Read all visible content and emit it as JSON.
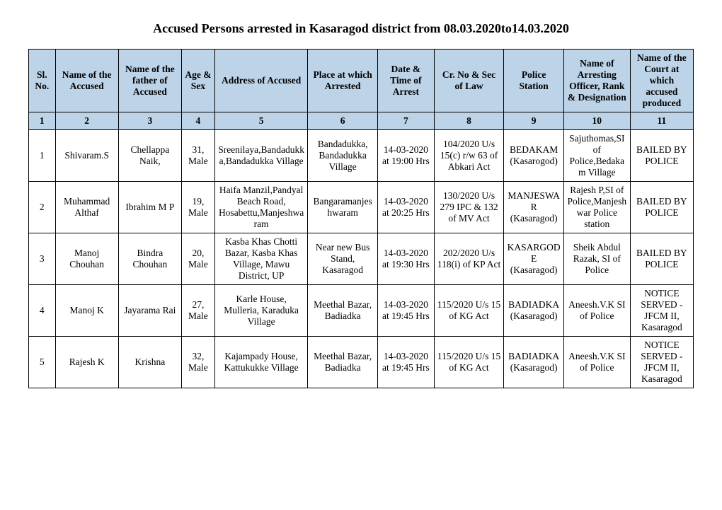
{
  "title": "Accused Persons arrested in   Kasaragod  district from  08.03.2020to14.03.2020",
  "columns": [
    "Sl. No.",
    "Name of the Accused",
    "Name of the father of Accused",
    "Age & Sex",
    "Address of Accused",
    "Place at which Arrested",
    "Date & Time of Arrest",
    "Cr. No & Sec of Law",
    "Police Station",
    "Name of Arresting Officer, Rank & Designation",
    "Name of the Court at which accused produced"
  ],
  "colnums": [
    "1",
    "2",
    "3",
    "4",
    "5",
    "6",
    "7",
    "8",
    "9",
    "10",
    "11"
  ],
  "rows": [
    {
      "sl": "1",
      "name": "Shivaram.S",
      "father": "Chellappa Naik,",
      "agesex": "31, Male",
      "address": "Sreenilaya,Bandadukka,Bandadukka Village",
      "place": "Bandadukka, Bandadukka Village",
      "datetime": "14-03-2020 at 19:00 Hrs",
      "crno": "104/2020 U/s 15(c) r/w 63 of Abkari Act",
      "station": "BEDAKAM (Kasarogod)",
      "officer": "Sajuthomas,SI of Police,Bedakam Village",
      "court": "BAILED BY POLICE"
    },
    {
      "sl": "2",
      "name": "Muhammad Althaf",
      "father": "Ibrahim M P",
      "agesex": "19, Male",
      "address": "Haifa Manzil,Pandyal Beach Road, Hosabettu,Manjeshwaram",
      "place": "Bangaramanjeshwaram",
      "datetime": "14-03-2020 at 20:25 Hrs",
      "crno": "130/2020 U/s 279 IPC & 132 of MV Act",
      "station": "MANJESWAR (Kasaragod)",
      "officer": "Rajesh P,SI of Police,Manjeshwar Police station",
      "court": "BAILED BY POLICE"
    },
    {
      "sl": "3",
      "name": "Manoj Chouhan",
      "father": "Bindra Chouhan",
      "agesex": "20, Male",
      "address": "Kasba Khas Chotti Bazar, Kasba Khas Village, Mawu District, UP",
      "place": "Near new Bus Stand, Kasaragod",
      "datetime": "14-03-2020 at 19:30 Hrs",
      "crno": "202/2020 U/s 118(i) of KP Act",
      "station": "KASARGODE (Kasaragod)",
      "officer": "Sheik Abdul Razak, SI of Police",
      "court": "BAILED BY POLICE"
    },
    {
      "sl": "4",
      "name": "Manoj K",
      "father": "Jayarama Rai",
      "agesex": "27, Male",
      "address": "Karle House, Mulleria, Karaduka Village",
      "place": "Meethal Bazar, Badiadka",
      "datetime": "14-03-2020 at 19:45 Hrs",
      "crno": "115/2020 U/s 15 of KG Act",
      "station": "BADIADKA (Kasaragod)",
      "officer": "Aneesh.V.K SI of Police",
      "court": "NOTICE SERVED - JFCM II, Kasaragod"
    },
    {
      "sl": "5",
      "name": "Rajesh K",
      "father": "Krishna",
      "agesex": "32, Male",
      "address": "Kajampady House, Kattukukke Village",
      "place": "Meethal Bazar, Badiadka",
      "datetime": "14-03-2020 at 19:45 Hrs",
      "crno": "115/2020 U/s 15 of KG Act",
      "station": "BADIADKA (Kasaragod)",
      "officer": "Aneesh.V.K SI of Police",
      "court": "NOTICE SERVED - JFCM II, Kasaragod"
    }
  ]
}
